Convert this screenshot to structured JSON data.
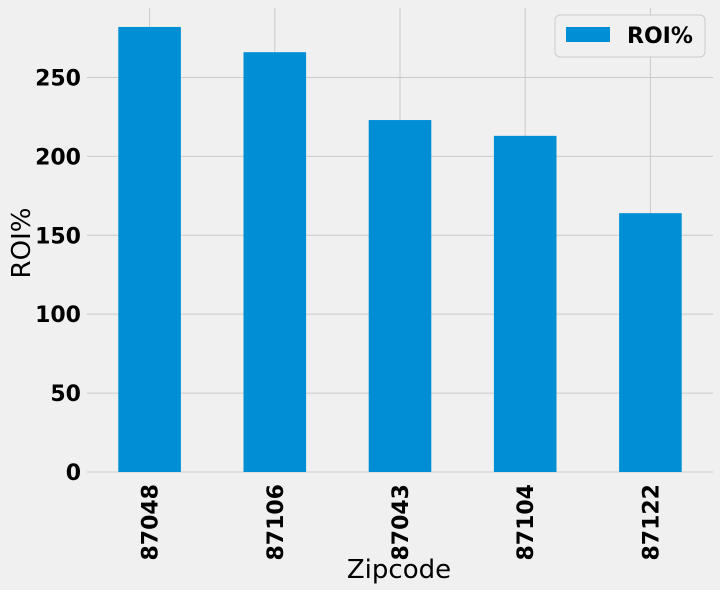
{
  "chart_data": {
    "type": "bar",
    "categories": [
      "87048",
      "87106",
      "87043",
      "87104",
      "87122"
    ],
    "series": [
      {
        "name": "ROI%",
        "values": [
          282,
          266,
          223,
          213,
          164
        ]
      }
    ],
    "title": "",
    "xlabel": "Zipcode",
    "ylabel": "ROI%",
    "ylim": [
      0,
      294
    ],
    "yticks": [
      0,
      50,
      100,
      150,
      200,
      250
    ],
    "grid": true,
    "legend": "top-right",
    "colors": {
      "bar": "#008fd5",
      "background": "#f0f0f0",
      "grid": "#cbcbcb",
      "legend_bg": "#f0f0f0",
      "legend_border": "#cccccc"
    }
  }
}
